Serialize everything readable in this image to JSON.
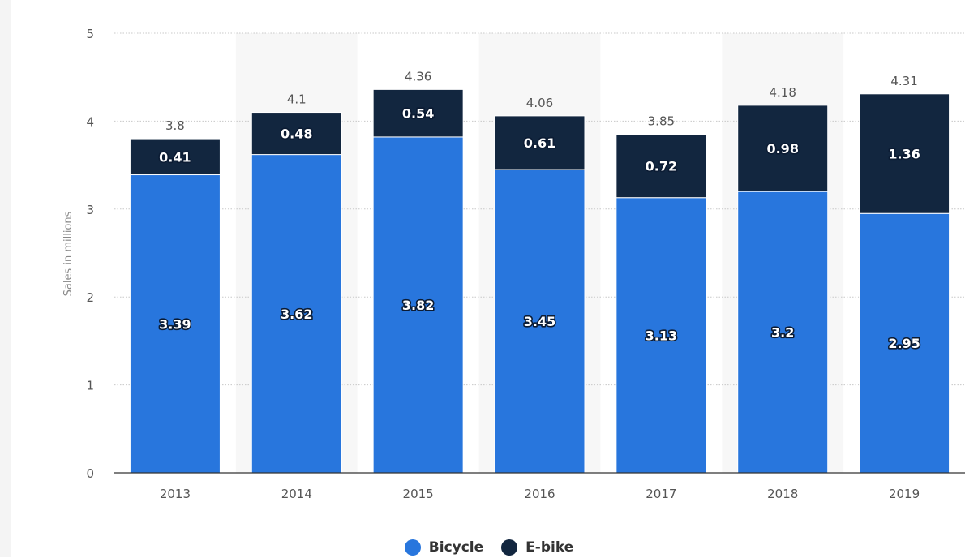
{
  "chart_data": {
    "type": "bar",
    "stacked": true,
    "categories": [
      "2013",
      "2014",
      "2015",
      "2016",
      "2017",
      "2018",
      "2019"
    ],
    "series": [
      {
        "name": "Bicycle",
        "color": "#2876dd",
        "values": [
          3.39,
          3.62,
          3.82,
          3.45,
          3.13,
          3.2,
          2.95
        ]
      },
      {
        "name": "E-bike",
        "color": "#12263f",
        "values": [
          0.41,
          0.48,
          0.54,
          0.61,
          0.72,
          0.98,
          1.36
        ]
      }
    ],
    "totals": [
      "3.8",
      "4.1",
      "4.36",
      "4.06",
      "3.85",
      "4.18",
      "4.31"
    ],
    "bar_labels": [
      [
        "3.39",
        "3.62",
        "3.82",
        "3.45",
        "3.13",
        "3.2",
        "2.95"
      ],
      [
        "0.41",
        "0.48",
        "0.54",
        "0.61",
        "0.72",
        "0.98",
        "1.36"
      ]
    ],
    "ylabel": "Sales in millions",
    "ylim": [
      0,
      5
    ],
    "yticks": [
      "0",
      "1",
      "2",
      "3",
      "4",
      "5"
    ],
    "grid": true,
    "alternating_band_color": "#f7f7f7",
    "legend_position": "bottom-center"
  }
}
